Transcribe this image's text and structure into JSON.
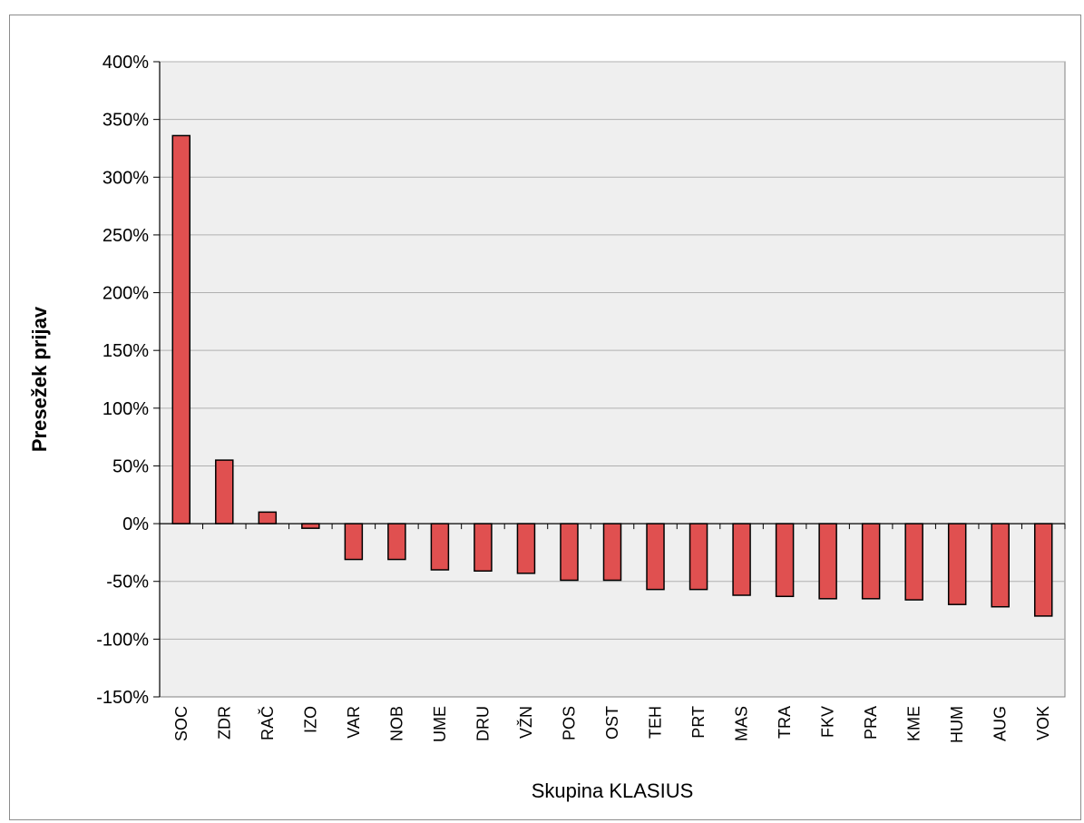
{
  "chart_data": {
    "type": "bar",
    "title": "",
    "xlabel": "Skupina KLASIUS",
    "ylabel": "Presežek prijav",
    "ylim": [
      -150,
      400
    ],
    "y_tick_step": 50,
    "y_tick_suffix": "%",
    "grid": true,
    "legend": "none",
    "categories": [
      "SOC",
      "ZDR",
      "RAČ",
      "IZO",
      "VAR",
      "NOB",
      "UME",
      "DRU",
      "VŽN",
      "POS",
      "OST",
      "TEH",
      "PRT",
      "MAS",
      "TRA",
      "FKV",
      "PRA",
      "KME",
      "HUM",
      "AUG",
      "VOK"
    ],
    "values": [
      336,
      55,
      10,
      -4,
      -31,
      -31,
      -40,
      -41,
      -43,
      -49,
      -49,
      -57,
      -57,
      -62,
      -63,
      -65,
      -65,
      -66,
      -70,
      -72,
      -80
    ],
    "colors": {
      "bar_fill": "#e05050",
      "bar_stroke": "#000000",
      "plot_bg": "#efefef",
      "grid": "#b0b0b0",
      "axis": "#000000"
    }
  }
}
